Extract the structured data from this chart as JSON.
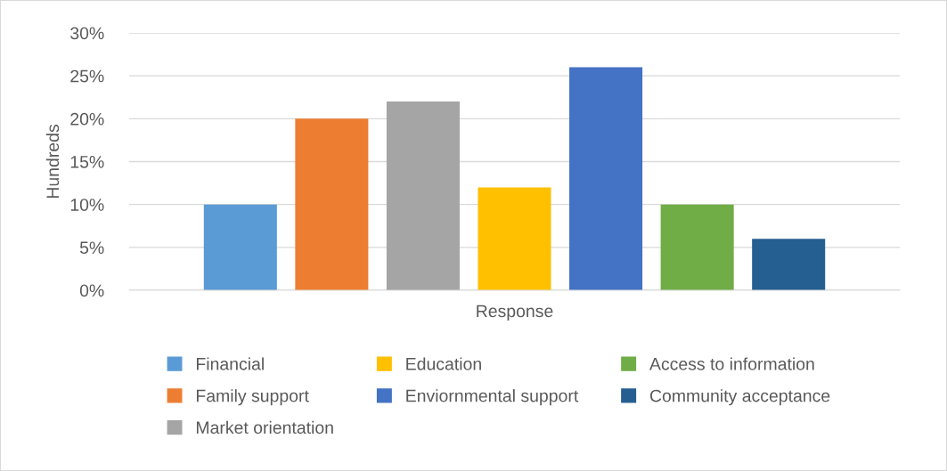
{
  "chart_data": {
    "type": "bar",
    "ylabel": "Hundreds",
    "xlabel": "Response",
    "categories": [
      null
    ],
    "series": [
      {
        "name": "Financial",
        "color": "#5b9bd5",
        "values": [
          10
        ]
      },
      {
        "name": "Family support",
        "color": "#ed7d31",
        "values": [
          20
        ]
      },
      {
        "name": "Market orientation",
        "color": "#a5a5a5",
        "values": [
          22
        ]
      },
      {
        "name": "Education",
        "color": "#ffc000",
        "values": [
          12
        ]
      },
      {
        "name": "Enviornmental support",
        "color": "#4472c4",
        "values": [
          26
        ]
      },
      {
        "name": "Access to information",
        "color": "#70ad47",
        "values": [
          10
        ]
      },
      {
        "name": "Community acceptance",
        "color": "#255e91",
        "values": [
          6
        ]
      }
    ],
    "ylim": [
      0,
      30
    ],
    "yticks": [
      {
        "value": 0,
        "label": "0%"
      },
      {
        "value": 5,
        "label": "5%"
      },
      {
        "value": 10,
        "label": "10%"
      },
      {
        "value": 15,
        "label": "15%"
      },
      {
        "value": 20,
        "label": "20%"
      },
      {
        "value": 25,
        "label": "25%"
      },
      {
        "value": 30,
        "label": "30%"
      }
    ],
    "grid": "y",
    "legend": "bottom"
  }
}
